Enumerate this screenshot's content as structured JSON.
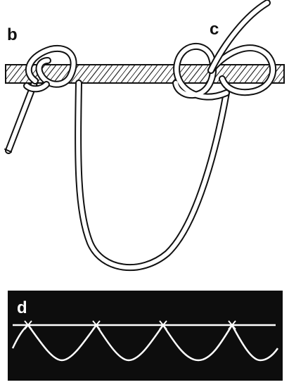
{
  "labels": {
    "b": "b",
    "c": "c",
    "d": "d"
  },
  "colors": {
    "ink": "#111111",
    "paper": "#ffffff",
    "panel": "#0d0d0d"
  },
  "panel_d": {
    "scallop_count": 4
  }
}
